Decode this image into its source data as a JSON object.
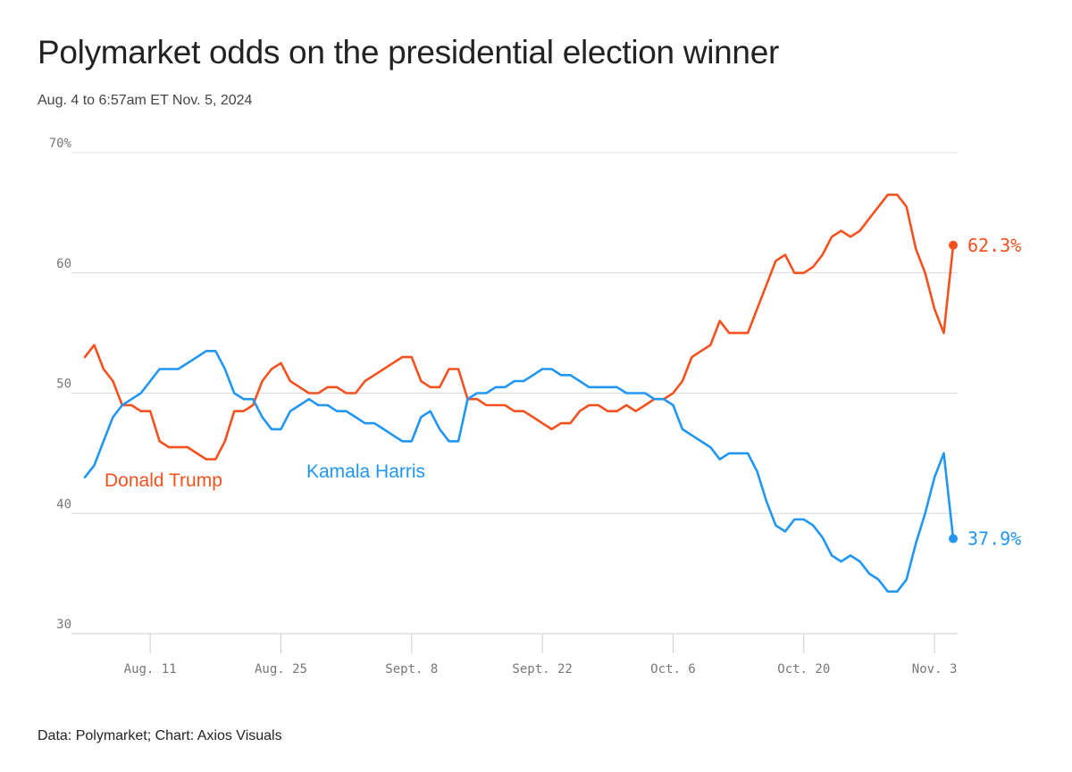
{
  "header": {
    "title": "Polymarket odds on the presidential election winner",
    "subtitle": "Aug. 4 to 6:57am ET Nov. 5, 2024"
  },
  "footer": {
    "source": "Data: Polymarket; Chart: Axios Visuals"
  },
  "colors": {
    "trump": "#f4511e",
    "harris": "#2196f3"
  },
  "chart_data": {
    "type": "line",
    "title": "Polymarket odds on the presidential election winner",
    "subtitle": "Aug. 4 to 6:57am ET Nov. 5, 2024",
    "x_axis": {
      "start": "2024-08-04",
      "end": "2024-11-05",
      "ticks": [
        {
          "date": "2024-08-11",
          "label": "Aug. 11"
        },
        {
          "date": "2024-08-25",
          "label": "Aug. 25"
        },
        {
          "date": "2024-09-08",
          "label": "Sept. 8"
        },
        {
          "date": "2024-09-22",
          "label": "Sept. 22"
        },
        {
          "date": "2024-10-06",
          "label": "Oct. 6"
        },
        {
          "date": "2024-10-20",
          "label": "Oct. 20"
        },
        {
          "date": "2024-11-03",
          "label": "Nov. 3"
        }
      ]
    },
    "y_axis": {
      "ylim": [
        30,
        70
      ],
      "ticks": [
        {
          "value": 70,
          "label": "70%"
        },
        {
          "value": 60,
          "label": "60"
        },
        {
          "value": 50,
          "label": "50"
        },
        {
          "value": 40,
          "label": "40"
        },
        {
          "value": 30,
          "label": "30"
        }
      ],
      "grid": true
    },
    "series": [
      {
        "name": "Donald Trump",
        "color": "#f4511e",
        "end_label": "62.3%",
        "points": [
          [
            "2024-08-04",
            53
          ],
          [
            "2024-08-05",
            54
          ],
          [
            "2024-08-06",
            52
          ],
          [
            "2024-08-07",
            51
          ],
          [
            "2024-08-08",
            49
          ],
          [
            "2024-08-09",
            49
          ],
          [
            "2024-08-10",
            48.5
          ],
          [
            "2024-08-11",
            48.5
          ],
          [
            "2024-08-12",
            46
          ],
          [
            "2024-08-13",
            45.5
          ],
          [
            "2024-08-14",
            45.5
          ],
          [
            "2024-08-15",
            45.5
          ],
          [
            "2024-08-16",
            45
          ],
          [
            "2024-08-17",
            44.5
          ],
          [
            "2024-08-18",
            44.5
          ],
          [
            "2024-08-19",
            46
          ],
          [
            "2024-08-20",
            48.5
          ],
          [
            "2024-08-21",
            48.5
          ],
          [
            "2024-08-22",
            49
          ],
          [
            "2024-08-23",
            51
          ],
          [
            "2024-08-24",
            52
          ],
          [
            "2024-08-25",
            52.5
          ],
          [
            "2024-08-26",
            51
          ],
          [
            "2024-08-27",
            50.5
          ],
          [
            "2024-08-28",
            50
          ],
          [
            "2024-08-29",
            50
          ],
          [
            "2024-08-30",
            50.5
          ],
          [
            "2024-08-31",
            50.5
          ],
          [
            "2024-09-01",
            50
          ],
          [
            "2024-09-02",
            50
          ],
          [
            "2024-09-03",
            51
          ],
          [
            "2024-09-04",
            51.5
          ],
          [
            "2024-09-05",
            52
          ],
          [
            "2024-09-06",
            52.5
          ],
          [
            "2024-09-07",
            53
          ],
          [
            "2024-09-08",
            53
          ],
          [
            "2024-09-09",
            51
          ],
          [
            "2024-09-10",
            50.5
          ],
          [
            "2024-09-11",
            50.5
          ],
          [
            "2024-09-12",
            52
          ],
          [
            "2024-09-13",
            52
          ],
          [
            "2024-09-14",
            49.5
          ],
          [
            "2024-09-15",
            49.5
          ],
          [
            "2024-09-16",
            49
          ],
          [
            "2024-09-17",
            49
          ],
          [
            "2024-09-18",
            49
          ],
          [
            "2024-09-19",
            48.5
          ],
          [
            "2024-09-20",
            48.5
          ],
          [
            "2024-09-21",
            48
          ],
          [
            "2024-09-22",
            47.5
          ],
          [
            "2024-09-23",
            47
          ],
          [
            "2024-09-24",
            47.5
          ],
          [
            "2024-09-25",
            47.5
          ],
          [
            "2024-09-26",
            48.5
          ],
          [
            "2024-09-27",
            49
          ],
          [
            "2024-09-28",
            49
          ],
          [
            "2024-09-29",
            48.5
          ],
          [
            "2024-09-30",
            48.5
          ],
          [
            "2024-10-01",
            49
          ],
          [
            "2024-10-02",
            48.5
          ],
          [
            "2024-10-03",
            49
          ],
          [
            "2024-10-04",
            49.5
          ],
          [
            "2024-10-05",
            49.5
          ],
          [
            "2024-10-06",
            50
          ],
          [
            "2024-10-07",
            51
          ],
          [
            "2024-10-08",
            53
          ],
          [
            "2024-10-09",
            53.5
          ],
          [
            "2024-10-10",
            54
          ],
          [
            "2024-10-11",
            56
          ],
          [
            "2024-10-12",
            55
          ],
          [
            "2024-10-13",
            55
          ],
          [
            "2024-10-14",
            55
          ],
          [
            "2024-10-15",
            57
          ],
          [
            "2024-10-16",
            59
          ],
          [
            "2024-10-17",
            61
          ],
          [
            "2024-10-18",
            61.5
          ],
          [
            "2024-10-19",
            60
          ],
          [
            "2024-10-20",
            60
          ],
          [
            "2024-10-21",
            60.5
          ],
          [
            "2024-10-22",
            61.5
          ],
          [
            "2024-10-23",
            63
          ],
          [
            "2024-10-24",
            63.5
          ],
          [
            "2024-10-25",
            63
          ],
          [
            "2024-10-26",
            63.5
          ],
          [
            "2024-10-27",
            64.5
          ],
          [
            "2024-10-28",
            65.5
          ],
          [
            "2024-10-29",
            66.5
          ],
          [
            "2024-10-30",
            66.5
          ],
          [
            "2024-10-31",
            65.5
          ],
          [
            "2024-11-01",
            62
          ],
          [
            "2024-11-02",
            60
          ],
          [
            "2024-11-03",
            57
          ],
          [
            "2024-11-04",
            55
          ],
          [
            "2024-11-05",
            62.3
          ]
        ]
      },
      {
        "name": "Kamala Harris",
        "color": "#2196f3",
        "end_label": "37.9%",
        "points": [
          [
            "2024-08-04",
            43
          ],
          [
            "2024-08-05",
            44
          ],
          [
            "2024-08-06",
            46
          ],
          [
            "2024-08-07",
            48
          ],
          [
            "2024-08-08",
            49
          ],
          [
            "2024-08-09",
            49.5
          ],
          [
            "2024-08-10",
            50
          ],
          [
            "2024-08-11",
            51
          ],
          [
            "2024-08-12",
            52
          ],
          [
            "2024-08-13",
            52
          ],
          [
            "2024-08-14",
            52
          ],
          [
            "2024-08-15",
            52.5
          ],
          [
            "2024-08-16",
            53
          ],
          [
            "2024-08-17",
            53.5
          ],
          [
            "2024-08-18",
            53.5
          ],
          [
            "2024-08-19",
            52
          ],
          [
            "2024-08-20",
            50
          ],
          [
            "2024-08-21",
            49.5
          ],
          [
            "2024-08-22",
            49.5
          ],
          [
            "2024-08-23",
            48
          ],
          [
            "2024-08-24",
            47
          ],
          [
            "2024-08-25",
            47
          ],
          [
            "2024-08-26",
            48.5
          ],
          [
            "2024-08-27",
            49
          ],
          [
            "2024-08-28",
            49.5
          ],
          [
            "2024-08-29",
            49
          ],
          [
            "2024-08-30",
            49
          ],
          [
            "2024-08-31",
            48.5
          ],
          [
            "2024-09-01",
            48.5
          ],
          [
            "2024-09-02",
            48
          ],
          [
            "2024-09-03",
            47.5
          ],
          [
            "2024-09-04",
            47.5
          ],
          [
            "2024-09-05",
            47
          ],
          [
            "2024-09-06",
            46.5
          ],
          [
            "2024-09-07",
            46
          ],
          [
            "2024-09-08",
            46
          ],
          [
            "2024-09-09",
            48
          ],
          [
            "2024-09-10",
            48.5
          ],
          [
            "2024-09-11",
            47
          ],
          [
            "2024-09-12",
            46
          ],
          [
            "2024-09-13",
            46
          ],
          [
            "2024-09-14",
            49.5
          ],
          [
            "2024-09-15",
            50
          ],
          [
            "2024-09-16",
            50
          ],
          [
            "2024-09-17",
            50.5
          ],
          [
            "2024-09-18",
            50.5
          ],
          [
            "2024-09-19",
            51
          ],
          [
            "2024-09-20",
            51
          ],
          [
            "2024-09-21",
            51.5
          ],
          [
            "2024-09-22",
            52
          ],
          [
            "2024-09-23",
            52
          ],
          [
            "2024-09-24",
            51.5
          ],
          [
            "2024-09-25",
            51.5
          ],
          [
            "2024-09-26",
            51
          ],
          [
            "2024-09-27",
            50.5
          ],
          [
            "2024-09-28",
            50.5
          ],
          [
            "2024-09-29",
            50.5
          ],
          [
            "2024-09-30",
            50.5
          ],
          [
            "2024-10-01",
            50
          ],
          [
            "2024-10-02",
            50
          ],
          [
            "2024-10-03",
            50
          ],
          [
            "2024-10-04",
            49.5
          ],
          [
            "2024-10-05",
            49.5
          ],
          [
            "2024-10-06",
            49
          ],
          [
            "2024-10-07",
            47
          ],
          [
            "2024-10-08",
            46.5
          ],
          [
            "2024-10-09",
            46
          ],
          [
            "2024-10-10",
            45.5
          ],
          [
            "2024-10-11",
            44.5
          ],
          [
            "2024-10-12",
            45
          ],
          [
            "2024-10-13",
            45
          ],
          [
            "2024-10-14",
            45
          ],
          [
            "2024-10-15",
            43.5
          ],
          [
            "2024-10-16",
            41
          ],
          [
            "2024-10-17",
            39
          ],
          [
            "2024-10-18",
            38.5
          ],
          [
            "2024-10-19",
            39.5
          ],
          [
            "2024-10-20",
            39.5
          ],
          [
            "2024-10-21",
            39
          ],
          [
            "2024-10-22",
            38
          ],
          [
            "2024-10-23",
            36.5
          ],
          [
            "2024-10-24",
            36
          ],
          [
            "2024-10-25",
            36.5
          ],
          [
            "2024-10-26",
            36
          ],
          [
            "2024-10-27",
            35
          ],
          [
            "2024-10-28",
            34.5
          ],
          [
            "2024-10-29",
            33.5
          ],
          [
            "2024-10-30",
            33.5
          ],
          [
            "2024-10-31",
            34.5
          ],
          [
            "2024-11-01",
            37.5
          ],
          [
            "2024-11-02",
            40
          ],
          [
            "2024-11-03",
            43
          ],
          [
            "2024-11-04",
            45
          ],
          [
            "2024-11-05",
            37.9
          ]
        ]
      }
    ],
    "annotations": [
      {
        "text": "Donald Trump",
        "series": "Donald Trump"
      },
      {
        "text": "Kamala Harris",
        "series": "Kamala Harris"
      }
    ]
  }
}
